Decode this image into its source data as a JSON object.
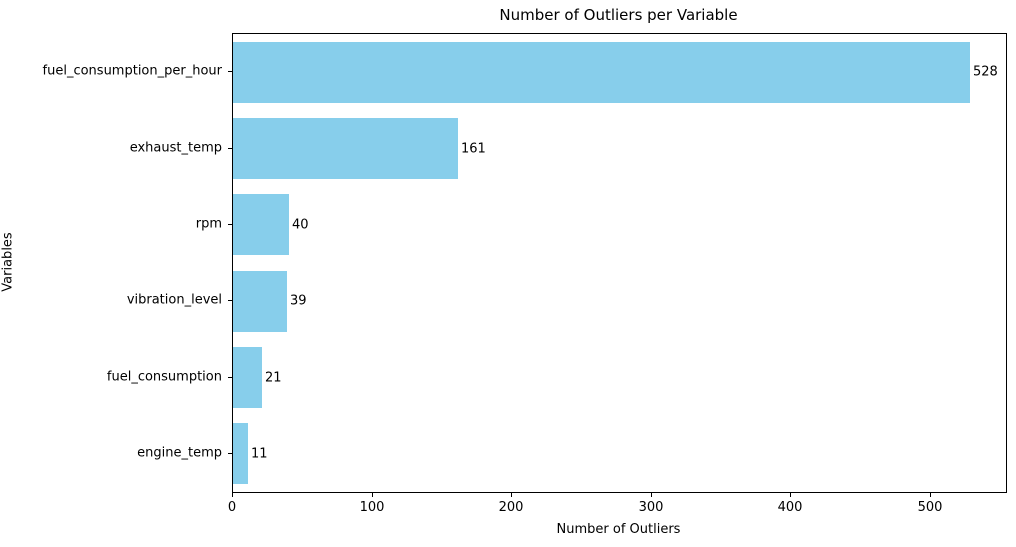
{
  "chart_data": {
    "type": "bar",
    "orientation": "horizontal",
    "title": "Number of Outliers per Variable",
    "xlabel": "Number of Outliers",
    "ylabel": "Variables",
    "categories": [
      "fuel_consumption_per_hour",
      "exhaust_temp",
      "rpm",
      "vibration_level",
      "fuel_consumption",
      "engine_temp"
    ],
    "values": [
      528,
      161,
      40,
      39,
      21,
      11
    ],
    "value_labels": [
      "528",
      "161",
      "40",
      "39",
      "21",
      "11"
    ],
    "xticks": [
      0,
      100,
      200,
      300,
      400,
      500
    ],
    "xlim": [
      0,
      554
    ],
    "grid": false,
    "legend": "none",
    "bar_color": "#87CEEB",
    "text_color": "#000000"
  }
}
